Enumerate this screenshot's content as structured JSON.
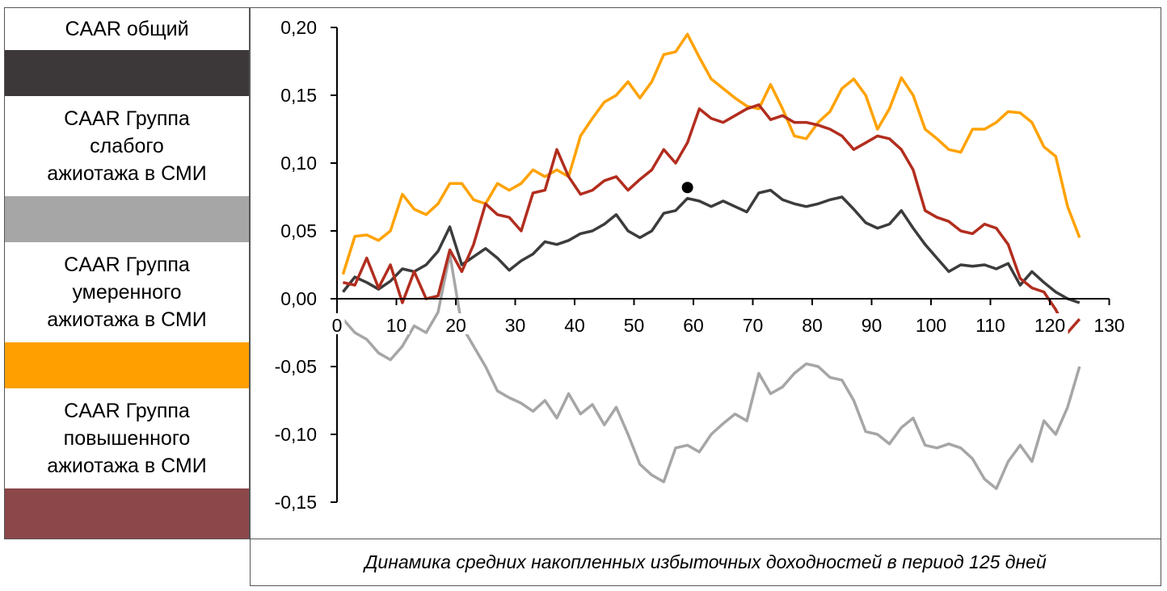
{
  "legend": {
    "items": [
      {
        "label": "CAAR общий",
        "color": "#3c3839"
      },
      {
        "label": "CAAR Группа\nслабого\nажиотажа в СМИ",
        "color": "#a6a6a6"
      },
      {
        "label": "CAAR Группа\nумеренного\nажиотажа в СМИ",
        "color": "#ffa000"
      },
      {
        "label": "CAAR Группа\nповышенного\nажиотажа в СМИ",
        "color": "#8b4749"
      }
    ]
  },
  "caption": "Динамика средних накопленных избыточных доходностей в период 125 дней",
  "chart_data": {
    "type": "line",
    "title": "Динамика средних накопленных избыточных доходностей в период 125 дней",
    "xlim": [
      0,
      130
    ],
    "ylim": [
      -0.15,
      0.2
    ],
    "x_ticks": [
      0,
      10,
      20,
      30,
      40,
      50,
      60,
      70,
      80,
      90,
      100,
      110,
      120,
      130
    ],
    "x_tick_labels": [
      "0",
      "10",
      "20",
      "30",
      "40",
      "50",
      "60",
      "70",
      "80",
      "90",
      "100",
      "110",
      "120",
      "130"
    ],
    "y_ticks": [
      -0.15,
      -0.1,
      -0.05,
      0,
      0.05,
      0.1,
      0.15,
      0.2
    ],
    "y_tick_labels": [
      "-0,15",
      "-0,10",
      "-0,05",
      "0,00",
      "0,05",
      "0,10",
      "0,15",
      "0,20"
    ],
    "grid": false,
    "legend_position": "left",
    "marker": {
      "x": 59,
      "y": 0.082
    },
    "series": [
      {
        "name": "CAAR общий",
        "color": "#3c3c3c",
        "x": [
          1,
          3,
          5,
          7,
          9,
          11,
          13,
          15,
          17,
          19,
          21,
          23,
          25,
          27,
          29,
          31,
          33,
          35,
          37,
          39,
          41,
          43,
          45,
          47,
          49,
          51,
          53,
          55,
          57,
          59,
          61,
          63,
          65,
          67,
          69,
          71,
          73,
          75,
          77,
          79,
          81,
          83,
          85,
          87,
          89,
          91,
          93,
          95,
          97,
          99,
          101,
          103,
          105,
          107,
          109,
          111,
          113,
          115,
          117,
          119,
          121,
          123,
          125
        ],
        "y": [
          0.005,
          0.016,
          0.012,
          0.007,
          0.013,
          0.022,
          0.02,
          0.025,
          0.035,
          0.053,
          0.025,
          0.031,
          0.037,
          0.03,
          0.021,
          0.028,
          0.033,
          0.042,
          0.04,
          0.043,
          0.048,
          0.05,
          0.055,
          0.062,
          0.05,
          0.045,
          0.05,
          0.063,
          0.065,
          0.074,
          0.072,
          0.068,
          0.072,
          0.068,
          0.064,
          0.078,
          0.08,
          0.073,
          0.07,
          0.068,
          0.07,
          0.073,
          0.075,
          0.066,
          0.056,
          0.052,
          0.055,
          0.065,
          0.052,
          0.04,
          0.03,
          0.02,
          0.025,
          0.024,
          0.025,
          0.022,
          0.026,
          0.01,
          0.02,
          0.012,
          0.005,
          0.0,
          -0.003
        ]
      },
      {
        "name": "CAAR Группа слабого ажиотажа в СМИ",
        "color": "#a6a6a6",
        "x": [
          1,
          3,
          5,
          7,
          9,
          11,
          13,
          15,
          17,
          19,
          21,
          23,
          25,
          27,
          29,
          31,
          33,
          35,
          37,
          39,
          41,
          43,
          45,
          47,
          49,
          51,
          53,
          55,
          57,
          59,
          61,
          63,
          65,
          67,
          69,
          71,
          73,
          75,
          77,
          79,
          81,
          83,
          85,
          87,
          89,
          91,
          93,
          95,
          97,
          99,
          101,
          103,
          105,
          107,
          109,
          111,
          113,
          115,
          117,
          119,
          121,
          123,
          125
        ],
        "y": [
          -0.015,
          -0.025,
          -0.03,
          -0.04,
          -0.045,
          -0.035,
          -0.02,
          -0.025,
          -0.01,
          0.033,
          -0.02,
          -0.035,
          -0.05,
          -0.068,
          -0.073,
          -0.077,
          -0.083,
          -0.075,
          -0.088,
          -0.07,
          -0.085,
          -0.078,
          -0.093,
          -0.08,
          -0.1,
          -0.122,
          -0.13,
          -0.135,
          -0.11,
          -0.108,
          -0.113,
          -0.1,
          -0.092,
          -0.085,
          -0.09,
          -0.055,
          -0.07,
          -0.065,
          -0.055,
          -0.048,
          -0.05,
          -0.058,
          -0.06,
          -0.075,
          -0.098,
          -0.1,
          -0.107,
          -0.095,
          -0.088,
          -0.108,
          -0.11,
          -0.107,
          -0.11,
          -0.118,
          -0.133,
          -0.14,
          -0.12,
          -0.108,
          -0.12,
          -0.09,
          -0.1,
          -0.08,
          -0.05
        ]
      },
      {
        "name": "CAAR Группа умеренного ажиотажа в СМИ",
        "color": "#ffa200",
        "x": [
          1,
          3,
          5,
          7,
          9,
          11,
          13,
          15,
          17,
          19,
          21,
          23,
          25,
          27,
          29,
          31,
          33,
          35,
          37,
          39,
          41,
          43,
          45,
          47,
          49,
          51,
          53,
          55,
          57,
          59,
          61,
          63,
          65,
          67,
          69,
          71,
          73,
          75,
          77,
          79,
          81,
          83,
          85,
          87,
          89,
          91,
          93,
          95,
          97,
          99,
          101,
          103,
          105,
          107,
          109,
          111,
          113,
          115,
          117,
          119,
          121,
          123,
          125
        ],
        "y": [
          0.018,
          0.046,
          0.047,
          0.043,
          0.05,
          0.077,
          0.066,
          0.062,
          0.07,
          0.085,
          0.085,
          0.073,
          0.07,
          0.085,
          0.08,
          0.085,
          0.095,
          0.09,
          0.095,
          0.09,
          0.12,
          0.133,
          0.145,
          0.15,
          0.16,
          0.148,
          0.16,
          0.18,
          0.182,
          0.195,
          0.178,
          0.162,
          0.155,
          0.148,
          0.142,
          0.14,
          0.158,
          0.14,
          0.12,
          0.118,
          0.13,
          0.138,
          0.155,
          0.162,
          0.15,
          0.125,
          0.14,
          0.163,
          0.15,
          0.125,
          0.118,
          0.11,
          0.108,
          0.125,
          0.125,
          0.13,
          0.138,
          0.137,
          0.13,
          0.112,
          0.105,
          0.068,
          0.045
        ]
      },
      {
        "name": "CAAR Группа повышенного ажиотажа в СМИ",
        "color": "#b22d1e",
        "x": [
          1,
          3,
          5,
          7,
          9,
          11,
          13,
          15,
          17,
          19,
          21,
          23,
          25,
          27,
          29,
          31,
          33,
          35,
          37,
          39,
          41,
          43,
          45,
          47,
          49,
          51,
          53,
          55,
          57,
          59,
          61,
          63,
          65,
          67,
          69,
          71,
          73,
          75,
          77,
          79,
          81,
          83,
          85,
          87,
          89,
          91,
          93,
          95,
          97,
          99,
          101,
          103,
          105,
          107,
          109,
          111,
          113,
          115,
          117,
          119,
          121,
          123,
          125
        ],
        "y": [
          0.012,
          0.01,
          0.03,
          0.008,
          0.025,
          -0.003,
          0.02,
          0.0,
          0.002,
          0.036,
          0.02,
          0.04,
          0.07,
          0.062,
          0.06,
          0.05,
          0.078,
          0.08,
          0.11,
          0.09,
          0.077,
          0.08,
          0.087,
          0.09,
          0.08,
          0.088,
          0.095,
          0.11,
          0.1,
          0.115,
          0.14,
          0.133,
          0.13,
          0.135,
          0.14,
          0.143,
          0.132,
          0.135,
          0.13,
          0.13,
          0.128,
          0.125,
          0.12,
          0.11,
          0.115,
          0.12,
          0.118,
          0.11,
          0.095,
          0.065,
          0.06,
          0.057,
          0.05,
          0.048,
          0.055,
          0.052,
          0.04,
          0.015,
          0.008,
          0.005,
          -0.008,
          -0.025,
          -0.015
        ]
      }
    ]
  }
}
